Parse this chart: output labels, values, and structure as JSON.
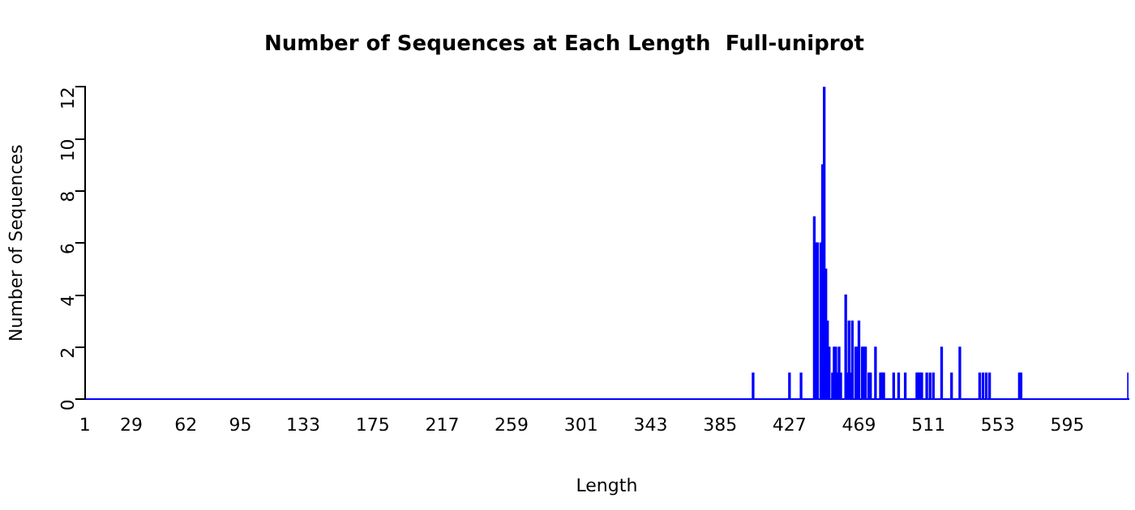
{
  "chart_data": {
    "type": "bar",
    "title": "Number of Sequences at Each Length  Full-uniprot",
    "xlabel": "Length",
    "ylabel": "Number of Sequences",
    "x": [
      405,
      427,
      434,
      442,
      443,
      444,
      446,
      447,
      448,
      449,
      450,
      451,
      453,
      454,
      455,
      456,
      457,
      458,
      461,
      462,
      463,
      464,
      465,
      467,
      468,
      469,
      471,
      472,
      473,
      475,
      476,
      479,
      482,
      483,
      484,
      490,
      493,
      497,
      504,
      505,
      506,
      507,
      510,
      512,
      514,
      519,
      525,
      530,
      542,
      544,
      546,
      548,
      566,
      567,
      632
    ],
    "series": [
      {
        "color": "#0000ff",
        "values": [
          1,
          1,
          1,
          7,
          6,
          6,
          6,
          9,
          12,
          5,
          3,
          2,
          1,
          2,
          2,
          1,
          2,
          1,
          4,
          1,
          3,
          1,
          3,
          2,
          2,
          3,
          2,
          2,
          2,
          1,
          1,
          2,
          1,
          1,
          1,
          1,
          1,
          1,
          1,
          1,
          1,
          1,
          1,
          1,
          1,
          2,
          1,
          2,
          1,
          1,
          1,
          1,
          1,
          1,
          1
        ]
      }
    ],
    "xlim": [
      1,
      632
    ],
    "xticks": [
      1,
      29,
      62,
      95,
      133,
      175,
      217,
      259,
      301,
      343,
      385,
      427,
      469,
      511,
      553,
      595
    ],
    "ylim": [
      0,
      12
    ],
    "yticks": [
      0,
      2,
      4,
      6,
      8,
      10,
      12
    ],
    "grid": false,
    "legend": false
  }
}
